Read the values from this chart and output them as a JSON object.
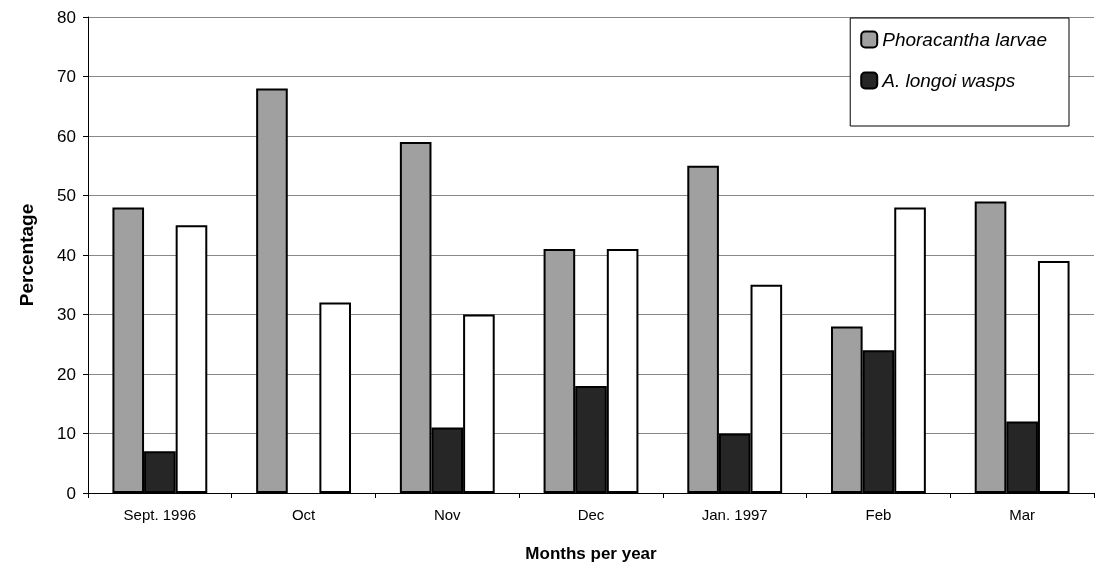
{
  "chart_data": {
    "type": "bar",
    "xlabel": "Months per year",
    "ylabel": "Percentage",
    "categories": [
      "Sept. 1996",
      "Oct",
      "Nov",
      "Dec",
      "Jan. 1997",
      "Feb",
      "Mar"
    ],
    "series": [
      {
        "name": "Phoracantha larvae",
        "color": "#a0a0a0",
        "values": [
          48,
          68,
          59,
          41,
          55,
          28,
          49
        ]
      },
      {
        "name": "A. longoi wasps",
        "color": "#262626",
        "values": [
          7,
          null,
          11,
          18,
          10,
          24,
          12
        ]
      },
      {
        "color": "#ffffff",
        "values": [
          45,
          32,
          30,
          41,
          35,
          48,
          39
        ]
      }
    ],
    "ylim": [
      0,
      80
    ],
    "yticks": [
      0,
      10,
      20,
      30,
      40,
      50,
      60,
      70,
      80
    ],
    "grid": "y",
    "legend": "top right"
  }
}
